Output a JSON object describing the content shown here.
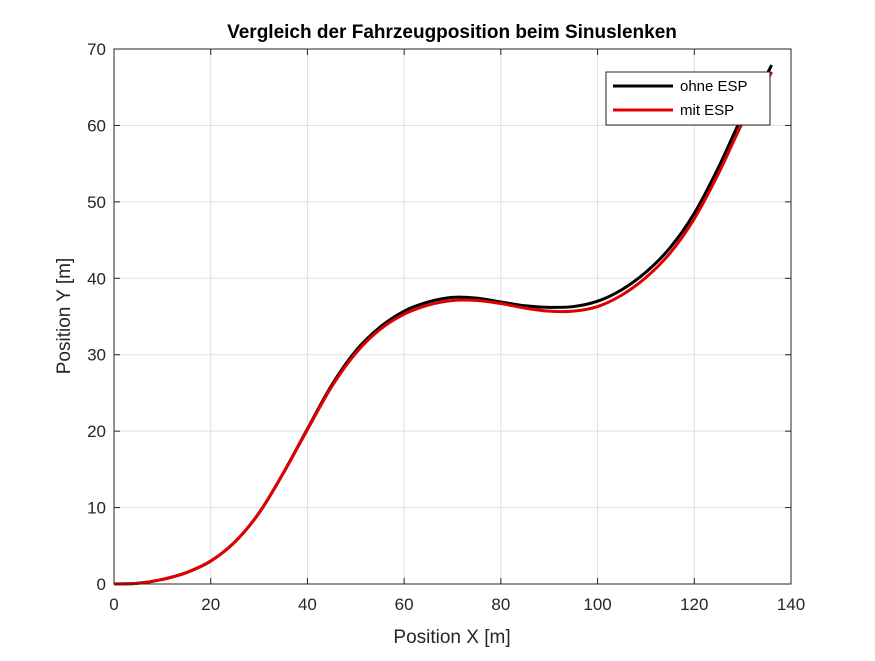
{
  "chart_data": {
    "type": "line",
    "title": "Vergleich der Fahrzeugposition beim Sinuslenken",
    "xlabel": "Position X [m]",
    "ylabel": "Position Y [m]",
    "xlim": [
      0,
      140
    ],
    "ylim": [
      0,
      70
    ],
    "x_ticks": [
      "0",
      "20",
      "40",
      "60",
      "80",
      "100",
      "120",
      "140"
    ],
    "y_ticks": [
      "0",
      "10",
      "20",
      "30",
      "40",
      "50",
      "60",
      "70"
    ],
    "grid": true,
    "legend_position": "top-right",
    "series": [
      {
        "name": "ohne ESP",
        "color": "#000000",
        "x": [
          0,
          5,
          10,
          15,
          20,
          25,
          30,
          35,
          40,
          45,
          50,
          55,
          60,
          65,
          70,
          75,
          80,
          85,
          90,
          95,
          100,
          105,
          110,
          115,
          120,
          125,
          130,
          134,
          136
        ],
        "y": [
          0,
          0.1,
          0.6,
          1.5,
          3.0,
          5.5,
          9.3,
          14.5,
          20.3,
          26.0,
          30.5,
          33.6,
          35.7,
          36.9,
          37.5,
          37.4,
          36.9,
          36.4,
          36.2,
          36.3,
          37.0,
          38.5,
          40.8,
          44.0,
          48.5,
          54.5,
          61.3,
          65.5,
          67.9
        ]
      },
      {
        "name": "mit ESP",
        "color": "#e00000",
        "x": [
          0,
          5,
          10,
          15,
          20,
          25,
          30,
          35,
          40,
          45,
          50,
          55,
          60,
          65,
          70,
          75,
          80,
          85,
          90,
          95,
          100,
          105,
          110,
          115,
          120,
          125,
          130,
          134,
          136
        ],
        "y": [
          0,
          0.1,
          0.6,
          1.5,
          3.0,
          5.5,
          9.3,
          14.5,
          20.2,
          25.8,
          30.2,
          33.3,
          35.3,
          36.5,
          37.1,
          37.1,
          36.7,
          36.1,
          35.7,
          35.7,
          36.3,
          37.8,
          40.1,
          43.3,
          47.8,
          53.7,
          60.4,
          64.7,
          67.0
        ]
      }
    ]
  }
}
